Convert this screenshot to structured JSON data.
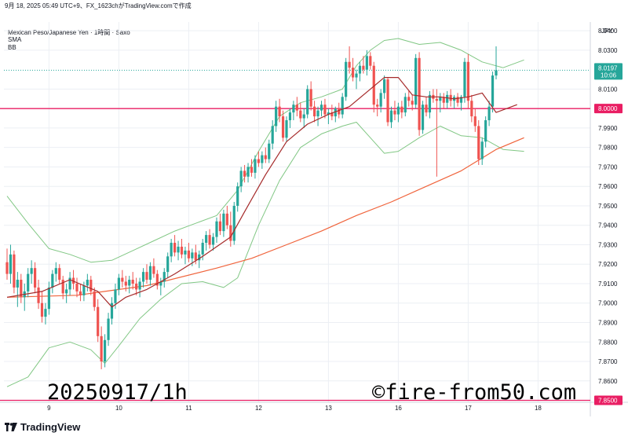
{
  "header": {
    "timestamp_text": "9月 18, 2025 05:49 UTC+9、FX_1623chがTradingView.comで作成",
    "symbol_line": "Mexican Peso/Japanese Yen · 1時間 · Saxo",
    "indicator_1": "SMA",
    "indicator_2": "BB"
  },
  "overlay": {
    "date_text": "20250917/1h",
    "site_text": "©fire-from50.com"
  },
  "footer": {
    "logo_text": "TradingView"
  },
  "colors": {
    "up": "#26a69a",
    "down": "#ef5350",
    "bb": "#81c784",
    "sma_short": "#a52a2a",
    "sma_long": "#f0643c",
    "hline": "#e91e63",
    "last_tag": "#26a69a",
    "grid": "#eceff4"
  },
  "chart_data": {
    "type": "candlestick",
    "currency": "JPY",
    "y_ticks": [
      "8.0400",
      "8.0300",
      "8.0100",
      "7.9900",
      "7.9800",
      "7.9700",
      "7.9600",
      "7.9500",
      "7.9400",
      "7.9300",
      "7.9200",
      "7.9100",
      "7.9000",
      "7.8900",
      "7.8800",
      "7.8700",
      "7.8600"
    ],
    "ylim": [
      7.849,
      8.0445
    ],
    "x_tick_labels": [
      {
        "label": "9",
        "index": 12
      },
      {
        "label": "10",
        "index": 32
      },
      {
        "label": "11",
        "index": 52
      },
      {
        "label": "12",
        "index": 72
      },
      {
        "label": "13",
        "index": 92
      },
      {
        "label": "16",
        "index": 112
      },
      {
        "label": "17",
        "index": 132
      },
      {
        "label": "18",
        "index": 152
      }
    ],
    "last_price": {
      "value": "8.0197",
      "countdown": "10:06",
      "y": 8.0197
    },
    "horizontal_lines": [
      {
        "label": "8.0000",
        "y": 8.0
      },
      {
        "label": "7.8500",
        "y": 7.85
      }
    ],
    "candles": [
      [
        7.921,
        7.928,
        7.912,
        7.915
      ],
      [
        7.915,
        7.93,
        7.91,
        7.925
      ],
      [
        7.925,
        7.927,
        7.905,
        7.908
      ],
      [
        7.908,
        7.916,
        7.898,
        7.912
      ],
      [
        7.912,
        7.915,
        7.9,
        7.903
      ],
      [
        7.903,
        7.91,
        7.896,
        7.906
      ],
      [
        7.906,
        7.918,
        7.903,
        7.915
      ],
      [
        7.915,
        7.922,
        7.91,
        7.918
      ],
      [
        7.918,
        7.921,
        7.905,
        7.908
      ],
      [
        7.908,
        7.912,
        7.897,
        7.9
      ],
      [
        7.9,
        7.906,
        7.89,
        7.893
      ],
      [
        7.893,
        7.9,
        7.889,
        7.897
      ],
      [
        7.897,
        7.911,
        7.894,
        7.908
      ],
      [
        7.908,
        7.917,
        7.905,
        7.915
      ],
      [
        7.915,
        7.921,
        7.911,
        7.918
      ],
      [
        7.918,
        7.92,
        7.91,
        7.912
      ],
      [
        7.912,
        7.914,
        7.902,
        7.905
      ],
      [
        7.905,
        7.91,
        7.9,
        7.907
      ],
      [
        7.907,
        7.916,
        7.904,
        7.913
      ],
      [
        7.913,
        7.917,
        7.907,
        7.91
      ],
      [
        7.91,
        7.913,
        7.903,
        7.906
      ],
      [
        7.906,
        7.91,
        7.901,
        7.904
      ],
      [
        7.904,
        7.911,
        7.901,
        7.909
      ],
      [
        7.909,
        7.915,
        7.906,
        7.912
      ],
      [
        7.912,
        7.914,
        7.904,
        7.906
      ],
      [
        7.906,
        7.908,
        7.896,
        7.898
      ],
      [
        7.898,
        7.902,
        7.88,
        7.883
      ],
      [
        7.883,
        7.888,
        7.866,
        7.87
      ],
      [
        7.87,
        7.884,
        7.867,
        7.881
      ],
      [
        7.881,
        7.895,
        7.878,
        7.892
      ],
      [
        7.892,
        7.903,
        7.889,
        7.9
      ],
      [
        7.9,
        7.91,
        7.897,
        7.907
      ],
      [
        7.907,
        7.915,
        7.904,
        7.913
      ],
      [
        7.913,
        7.917,
        7.908,
        7.911
      ],
      [
        7.911,
        7.914,
        7.906,
        7.909
      ],
      [
        7.909,
        7.914,
        7.905,
        7.912
      ],
      [
        7.912,
        7.916,
        7.907,
        7.91
      ],
      [
        7.91,
        7.913,
        7.904,
        7.907
      ],
      [
        7.907,
        7.913,
        7.903,
        7.911
      ],
      [
        7.911,
        7.918,
        7.908,
        7.916
      ],
      [
        7.916,
        7.92,
        7.91,
        7.912
      ],
      [
        7.912,
        7.921,
        7.909,
        7.919
      ],
      [
        7.919,
        7.923,
        7.913,
        7.915
      ],
      [
        7.915,
        7.917,
        7.907,
        7.909
      ],
      [
        7.909,
        7.913,
        7.904,
        7.911
      ],
      [
        7.911,
        7.918,
        7.908,
        7.916
      ],
      [
        7.916,
        7.926,
        7.913,
        7.924
      ],
      [
        7.924,
        7.933,
        7.921,
        7.931
      ],
      [
        7.931,
        7.935,
        7.924,
        7.926
      ],
      [
        7.926,
        7.932,
        7.922,
        7.929
      ],
      [
        7.929,
        7.933,
        7.923,
        7.925
      ],
      [
        7.925,
        7.929,
        7.92,
        7.927
      ],
      [
        7.927,
        7.931,
        7.921,
        7.923
      ],
      [
        7.923,
        7.928,
        7.919,
        7.926
      ],
      [
        7.926,
        7.93,
        7.92,
        7.922
      ],
      [
        7.922,
        7.927,
        7.918,
        7.925
      ],
      [
        7.925,
        7.933,
        7.922,
        7.931
      ],
      [
        7.931,
        7.937,
        7.927,
        7.935
      ],
      [
        7.935,
        7.938,
        7.928,
        7.93
      ],
      [
        7.93,
        7.936,
        7.927,
        7.934
      ],
      [
        7.934,
        7.944,
        7.931,
        7.942
      ],
      [
        7.942,
        7.946,
        7.935,
        7.937
      ],
      [
        7.937,
        7.948,
        7.934,
        7.946
      ],
      [
        7.946,
        7.95,
        7.938,
        7.94
      ],
      [
        7.94,
        7.947,
        7.929,
        7.932
      ],
      [
        7.932,
        7.952,
        7.93,
        7.95
      ],
      [
        7.95,
        7.962,
        7.947,
        7.96
      ],
      [
        7.96,
        7.97,
        7.957,
        7.968
      ],
      [
        7.968,
        7.971,
        7.962,
        7.965
      ],
      [
        7.965,
        7.972,
        7.962,
        7.97
      ],
      [
        7.97,
        7.974,
        7.965,
        7.967
      ],
      [
        7.967,
        7.976,
        7.964,
        7.974
      ],
      [
        7.974,
        7.978,
        7.97,
        7.972
      ],
      [
        7.972,
        7.978,
        7.969,
        7.976
      ],
      [
        7.976,
        7.98,
        7.972,
        7.974
      ],
      [
        7.974,
        7.984,
        7.972,
        7.982
      ],
      [
        7.982,
        7.994,
        7.979,
        7.991
      ],
      [
        7.991,
        8.004,
        7.988,
        8.001
      ],
      [
        8.001,
        8.005,
        7.993,
        7.996
      ],
      [
        7.996,
        7.999,
        7.983,
        7.985
      ],
      [
        7.985,
        7.996,
        7.983,
        7.994
      ],
      [
        7.994,
        8.0,
        7.99,
        7.998
      ],
      [
        7.998,
        8.004,
        7.994,
        8.002
      ],
      [
        8.002,
        8.006,
        7.996,
        7.999
      ],
      [
        7.999,
        8.003,
        7.993,
        7.995
      ],
      [
        7.995,
        8.0,
        7.99,
        7.997
      ],
      [
        7.997,
        8.012,
        7.995,
        8.01
      ],
      [
        8.01,
        8.014,
        7.999,
        8.001
      ],
      [
        8.001,
        8.004,
        7.993,
        7.996
      ],
      [
        7.996,
        8.001,
        7.991,
        7.999
      ],
      [
        7.999,
        8.004,
        7.996,
        8.002
      ],
      [
        8.002,
        8.005,
        7.995,
        7.997
      ],
      [
        7.997,
        8.0,
        7.992,
        7.998
      ],
      [
        7.998,
        8.002,
        7.994,
        7.996
      ],
      [
        7.996,
        8.001,
        7.993,
        8.0
      ],
      [
        8.0,
        8.003,
        7.995,
        7.997
      ],
      [
        7.997,
        8.008,
        7.995,
        8.006
      ],
      [
        8.006,
        8.026,
        8.004,
        8.024
      ],
      [
        8.024,
        8.032,
        8.018,
        8.021
      ],
      [
        8.021,
        8.026,
        8.014,
        8.016
      ],
      [
        8.016,
        8.02,
        8.01,
        8.018
      ],
      [
        8.018,
        8.024,
        8.014,
        8.022
      ],
      [
        8.022,
        8.027,
        8.018,
        8.02
      ],
      [
        8.02,
        8.03,
        8.017,
        8.027
      ],
      [
        8.027,
        8.029,
        8.02,
        8.022
      ],
      [
        8.022,
        8.024,
        7.998,
        8.002
      ],
      [
        8.002,
        8.005,
        7.996,
        8.001
      ],
      [
        8.001,
        8.01,
        7.998,
        8.008
      ],
      [
        8.008,
        8.017,
        8.005,
        8.015
      ],
      [
        8.015,
        8.016,
        7.991,
        7.993
      ],
      [
        7.993,
        8.001,
        7.99,
        7.999
      ],
      [
        7.999,
        8.004,
        7.994,
        7.997
      ],
      [
        7.997,
        8.003,
        7.993,
        8.001
      ],
      [
        8.001,
        8.004,
        7.995,
        7.998
      ],
      [
        7.998,
        8.008,
        7.996,
        8.006
      ],
      [
        8.006,
        8.009,
        8.001,
        8.004
      ],
      [
        8.004,
        8.007,
        7.999,
        8.002
      ],
      [
        8.002,
        8.028,
        8.0,
        8.026
      ],
      [
        8.026,
        8.029,
        7.986,
        7.989
      ],
      [
        7.989,
        8.004,
        7.987,
        8.002
      ],
      [
        8.002,
        8.006,
        7.996,
        7.998
      ],
      [
        7.998,
        8.009,
        7.995,
        8.007
      ],
      [
        8.007,
        8.01,
        8.003,
        8.005
      ],
      [
        8.005,
        8.01,
        7.965,
        8.004
      ],
      [
        8.004,
        8.008,
        7.998,
        8.006
      ],
      [
        8.006,
        8.008,
        8.0,
        8.003
      ],
      [
        8.003,
        8.009,
        8.0,
        8.007
      ],
      [
        8.007,
        8.01,
        8.001,
        8.004
      ],
      [
        8.004,
        8.007,
        8.0,
        8.006
      ],
      [
        8.006,
        8.008,
        8.001,
        8.003
      ],
      [
        8.003,
        8.007,
        7.999,
        8.006
      ],
      [
        8.006,
        8.026,
        8.003,
        8.024
      ],
      [
        8.024,
        8.028,
        8.0,
        8.004
      ],
      [
        8.004,
        8.007,
        7.993,
        7.996
      ],
      [
        7.996,
        8.0,
        7.988,
        7.991
      ],
      [
        7.991,
        7.994,
        7.971,
        7.974
      ],
      [
        7.974,
        7.985,
        7.971,
        7.983
      ],
      [
        7.983,
        7.996,
        7.98,
        7.994
      ],
      [
        7.994,
        8.004,
        7.991,
        8.001
      ],
      [
        8.001,
        8.019,
        7.998,
        8.017
      ],
      [
        8.017,
        8.032,
        8.015,
        8.0197
      ]
    ],
    "sma_short": [
      [
        0,
        7.903
      ],
      [
        10,
        7.906
      ],
      [
        18,
        7.912
      ],
      [
        26,
        7.906
      ],
      [
        30,
        7.898
      ],
      [
        34,
        7.903
      ],
      [
        40,
        7.907
      ],
      [
        48,
        7.915
      ],
      [
        56,
        7.924
      ],
      [
        64,
        7.934
      ],
      [
        68,
        7.947
      ],
      [
        74,
        7.966
      ],
      [
        80,
        7.983
      ],
      [
        86,
        7.992
      ],
      [
        92,
        7.997
      ],
      [
        98,
        8.001
      ],
      [
        104,
        8.01
      ],
      [
        108,
        8.016
      ],
      [
        112,
        8.016
      ],
      [
        116,
        8.007
      ],
      [
        120,
        8.006
      ],
      [
        124,
        8.006
      ],
      [
        128,
        8.005
      ],
      [
        132,
        8.006
      ],
      [
        136,
        8.008
      ],
      [
        140,
        7.998
      ],
      [
        146,
        8.002
      ]
    ],
    "sma_long": [
      [
        0,
        7.903
      ],
      [
        20,
        7.904
      ],
      [
        40,
        7.909
      ],
      [
        60,
        7.918
      ],
      [
        70,
        7.923
      ],
      [
        80,
        7.93
      ],
      [
        90,
        7.937
      ],
      [
        100,
        7.945
      ],
      [
        110,
        7.952
      ],
      [
        120,
        7.96
      ],
      [
        130,
        7.968
      ],
      [
        140,
        7.979
      ],
      [
        148,
        7.985
      ]
    ],
    "bb_upper": [
      [
        0,
        7.955
      ],
      [
        6,
        7.941
      ],
      [
        12,
        7.928
      ],
      [
        18,
        7.925
      ],
      [
        24,
        7.921
      ],
      [
        30,
        7.922
      ],
      [
        36,
        7.927
      ],
      [
        42,
        7.932
      ],
      [
        48,
        7.937
      ],
      [
        54,
        7.941
      ],
      [
        60,
        7.945
      ],
      [
        66,
        7.958
      ],
      [
        72,
        7.978
      ],
      [
        78,
        7.996
      ],
      [
        84,
        8.003
      ],
      [
        90,
        8.006
      ],
      [
        96,
        8.01
      ],
      [
        100,
        8.022
      ],
      [
        104,
        8.03
      ],
      [
        108,
        8.035
      ],
      [
        112,
        8.036
      ],
      [
        118,
        8.033
      ],
      [
        124,
        8.034
      ],
      [
        130,
        8.03
      ],
      [
        136,
        8.024
      ],
      [
        142,
        8.021
      ],
      [
        148,
        8.025
      ]
    ],
    "bb_lower": [
      [
        0,
        7.857
      ],
      [
        6,
        7.862
      ],
      [
        12,
        7.877
      ],
      [
        18,
        7.88
      ],
      [
        24,
        7.876
      ],
      [
        28,
        7.869
      ],
      [
        32,
        7.878
      ],
      [
        38,
        7.892
      ],
      [
        44,
        7.902
      ],
      [
        50,
        7.91
      ],
      [
        56,
        7.911
      ],
      [
        62,
        7.908
      ],
      [
        66,
        7.913
      ],
      [
        72,
        7.94
      ],
      [
        78,
        7.963
      ],
      [
        84,
        7.98
      ],
      [
        90,
        7.987
      ],
      [
        96,
        7.991
      ],
      [
        100,
        7.993
      ],
      [
        104,
        7.985
      ],
      [
        108,
        7.977
      ],
      [
        112,
        7.978
      ],
      [
        118,
        7.985
      ],
      [
        124,
        7.991
      ],
      [
        130,
        7.986
      ],
      [
        136,
        7.985
      ],
      [
        142,
        7.979
      ],
      [
        148,
        7.978
      ]
    ]
  }
}
